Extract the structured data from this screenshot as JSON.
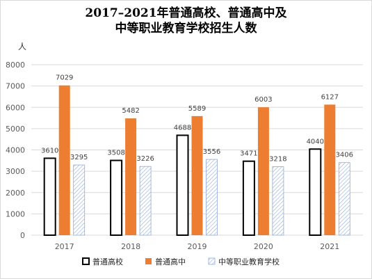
{
  "title_line1": "2017–2021年普通高校、普通高中及",
  "title_line2": "中等职业教育学校招生人数",
  "unit_label": "人",
  "colors": {
    "s0_fill": "#ffffff",
    "s0_stroke": "#000000",
    "s1_fill": "#ed7d31",
    "s2_hatch": "#8faadc",
    "grid": "#d9d9d9",
    "axis_text": "#595959",
    "label_text": "#404040"
  },
  "chart_data": {
    "type": "bar",
    "categories": [
      "2017",
      "2018",
      "2019",
      "2020",
      "2021"
    ],
    "series": [
      {
        "name": "普通高校",
        "values": [
          3610,
          3508,
          4688,
          3471,
          4040
        ]
      },
      {
        "name": "普通高中",
        "values": [
          7029,
          5482,
          5589,
          6003,
          6127
        ]
      },
      {
        "name": "中等职业教育学校",
        "values": [
          3295,
          3226,
          3556,
          3218,
          3406
        ]
      }
    ],
    "ylim": [
      0,
      8000
    ],
    "yticks": [
      0,
      1000,
      2000,
      3000,
      4000,
      5000,
      6000,
      7000,
      8000
    ],
    "grid": true,
    "legend": "bottom",
    "ylabel": "人"
  }
}
